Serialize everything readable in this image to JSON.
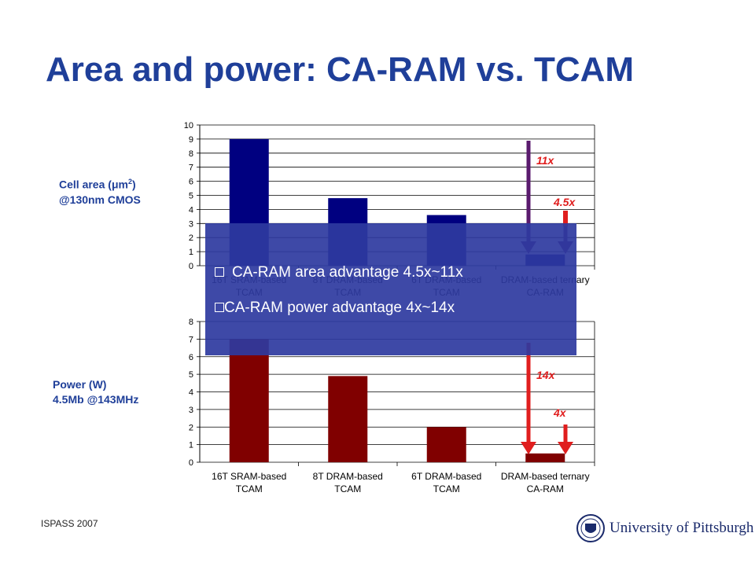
{
  "slide": {
    "title": "Area and power: CA-RAM vs. TCAM",
    "footer": "ISPASS 2007",
    "logo_text": "University of Pittsburgh"
  },
  "labels": {
    "area_line1": "Cell area (",
    "area_mu": "μ",
    "area_unit": "m",
    "area_sup": "2",
    "area_close": ")",
    "area_line2": "@130nm CMOS",
    "power_line1": "Power (W)",
    "power_line2": "4.5Mb @143MHz"
  },
  "overlay": {
    "bullets": [
      "CA-RAM area advantage 4.5x~11x",
      "CA-RAM power advantage 4x~14x"
    ]
  },
  "colors": {
    "area_bar": "#000080",
    "power_bar": "#800000",
    "arrow_area": "#5a1a6e",
    "arrow_power": "#e01e1e",
    "annotation": "#e01e1e",
    "overlay": "#2e39a0"
  },
  "chart_data": [
    {
      "type": "bar",
      "categories": [
        "16T SRAM-based\nTCAM",
        "8T DRAM-based\nTCAM",
        "6T DRAM-based\nTCAM",
        "DRAM-based ternary\nCA-RAM"
      ],
      "values": [
        9,
        4.8,
        3.6,
        0.8
      ],
      "ylim": [
        0,
        10
      ],
      "yticks": [
        0,
        1,
        2,
        3,
        4,
        5,
        6,
        7,
        8,
        9,
        10
      ],
      "grid": true,
      "annotations": [
        "11x",
        "4.5x"
      ]
    },
    {
      "type": "bar",
      "categories": [
        "16T SRAM-based\nTCAM",
        "8T DRAM-based\nTCAM",
        "6T DRAM-based\nTCAM",
        "DRAM-based ternary\nCA-RAM"
      ],
      "values": [
        7,
        4.9,
        2,
        0.5
      ],
      "ylim": [
        0,
        8
      ],
      "yticks": [
        0,
        1,
        2,
        3,
        4,
        5,
        6,
        7,
        8
      ],
      "grid": true,
      "annotations": [
        "14x",
        "4x"
      ]
    }
  ]
}
